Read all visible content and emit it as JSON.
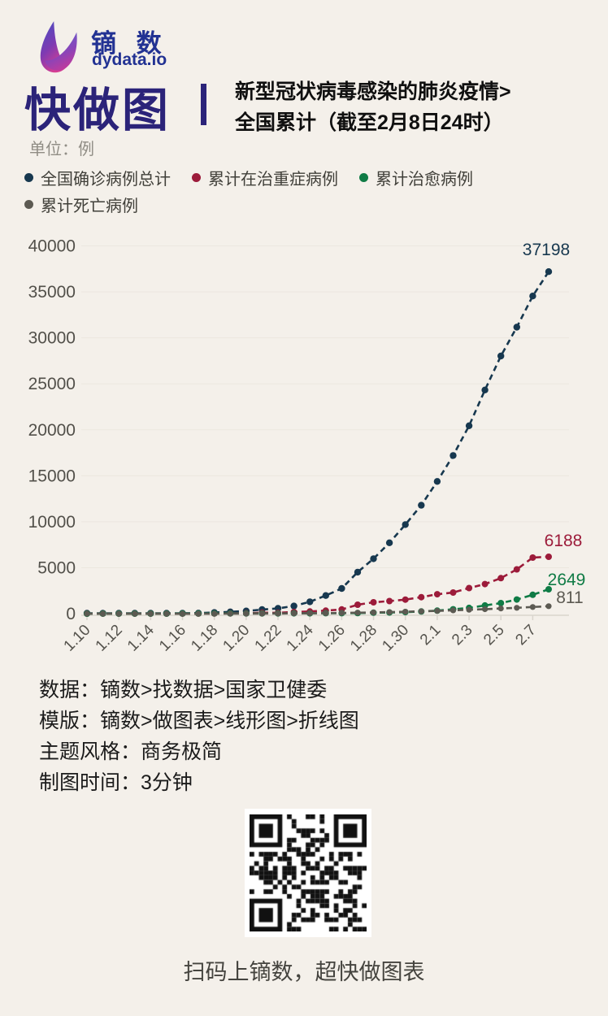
{
  "page": {
    "background": "#f4f0ea"
  },
  "header": {
    "brand_name": "镝 数",
    "brand_domain": "dydata.io",
    "title": "快做图",
    "subtitle_line1": "新型冠状病毒感染的肺炎疫情>",
    "subtitle_line2": "全国累计（截至2月8日24时）",
    "unit_label": "单位：例",
    "title_color": "#2b2379",
    "brand_color": "#223293"
  },
  "legend": [
    {
      "label": "全国确诊病例总计",
      "color": "#17384f"
    },
    {
      "label": "累计在治重症病例",
      "color": "#9c1b3a"
    },
    {
      "label": "累计治愈病例",
      "color": "#0f7b45"
    },
    {
      "label": "累计死亡病例",
      "color": "#5c5a52"
    }
  ],
  "chart_data": {
    "type": "line",
    "title": "新型冠状病毒感染的肺炎疫情 全国累计（截至2月8日24时）",
    "unit": "例",
    "grid": false,
    "legend_position": "top",
    "ylim": [
      0,
      40000
    ],
    "y_ticks": [
      0,
      5000,
      10000,
      15000,
      20000,
      25000,
      30000,
      35000,
      40000
    ],
    "x": [
      "1.10",
      "1.11",
      "1.12",
      "1.13",
      "1.14",
      "1.15",
      "1.16",
      "1.17",
      "1.18",
      "1.19",
      "1.20",
      "1.21",
      "1.22",
      "1.23",
      "1.24",
      "1.25",
      "1.26",
      "1.27",
      "1.28",
      "1.29",
      "1.30",
      "1.31",
      "2.1",
      "2.2",
      "2.3",
      "2.4",
      "2.5",
      "2.6",
      "2.7",
      "2.8"
    ],
    "x_tick_labels": [
      "1.10",
      "1.12",
      "1.14",
      "1.16",
      "1.18",
      "1.20",
      "1.22",
      "1.24",
      "1.26",
      "1.28",
      "1.30",
      "2.1",
      "2.3",
      "2.5",
      "2.7"
    ],
    "series": [
      {
        "name": "全国确诊病例总计",
        "color": "#17384f",
        "end_label": "37198",
        "values": [
          41,
          41,
          41,
          41,
          41,
          41,
          45,
          62,
          121,
          198,
          291,
          440,
          571,
          830,
          1287,
          1975,
          2744,
          4515,
          5974,
          7711,
          9692,
          11791,
          14380,
          17205,
          20438,
          24324,
          28018,
          31161,
          34546,
          37198
        ]
      },
      {
        "name": "累计在治重症病例",
        "color": "#9c1b3a",
        "end_label": "6188",
        "values": [
          7,
          7,
          7,
          6,
          6,
          5,
          5,
          8,
          15,
          35,
          51,
          102,
          95,
          177,
          237,
          324,
          461,
          976,
          1239,
          1370,
          1527,
          1795,
          2110,
          2296,
          2788,
          3219,
          3859,
          4821,
          6101,
          6188
        ]
      },
      {
        "name": "累计治愈病例",
        "color": "#0f7b45",
        "end_label": "2649",
        "values": [
          2,
          6,
          6,
          6,
          6,
          12,
          15,
          19,
          24,
          25,
          25,
          25,
          28,
          34,
          38,
          49,
          51,
          60,
          103,
          124,
          171,
          243,
          328,
          475,
          632,
          892,
          1153,
          1540,
          2050,
          2649
        ]
      },
      {
        "name": "累计死亡病例",
        "color": "#5c5a52",
        "end_label": "811",
        "values": [
          1,
          1,
          1,
          1,
          1,
          2,
          2,
          2,
          3,
          4,
          6,
          9,
          17,
          25,
          41,
          56,
          80,
          106,
          132,
          170,
          213,
          259,
          304,
          361,
          425,
          490,
          563,
          636,
          722,
          811
        ]
      }
    ]
  },
  "footer": {
    "info_lines": [
      "数据：镝数>找数据>国家卫健委",
      "模版：镝数>做图表>线形图>折线图",
      "主题风格：商务极简",
      "制图时间：3分钟"
    ],
    "qr_caption": "扫码上镝数，超快做图表"
  }
}
